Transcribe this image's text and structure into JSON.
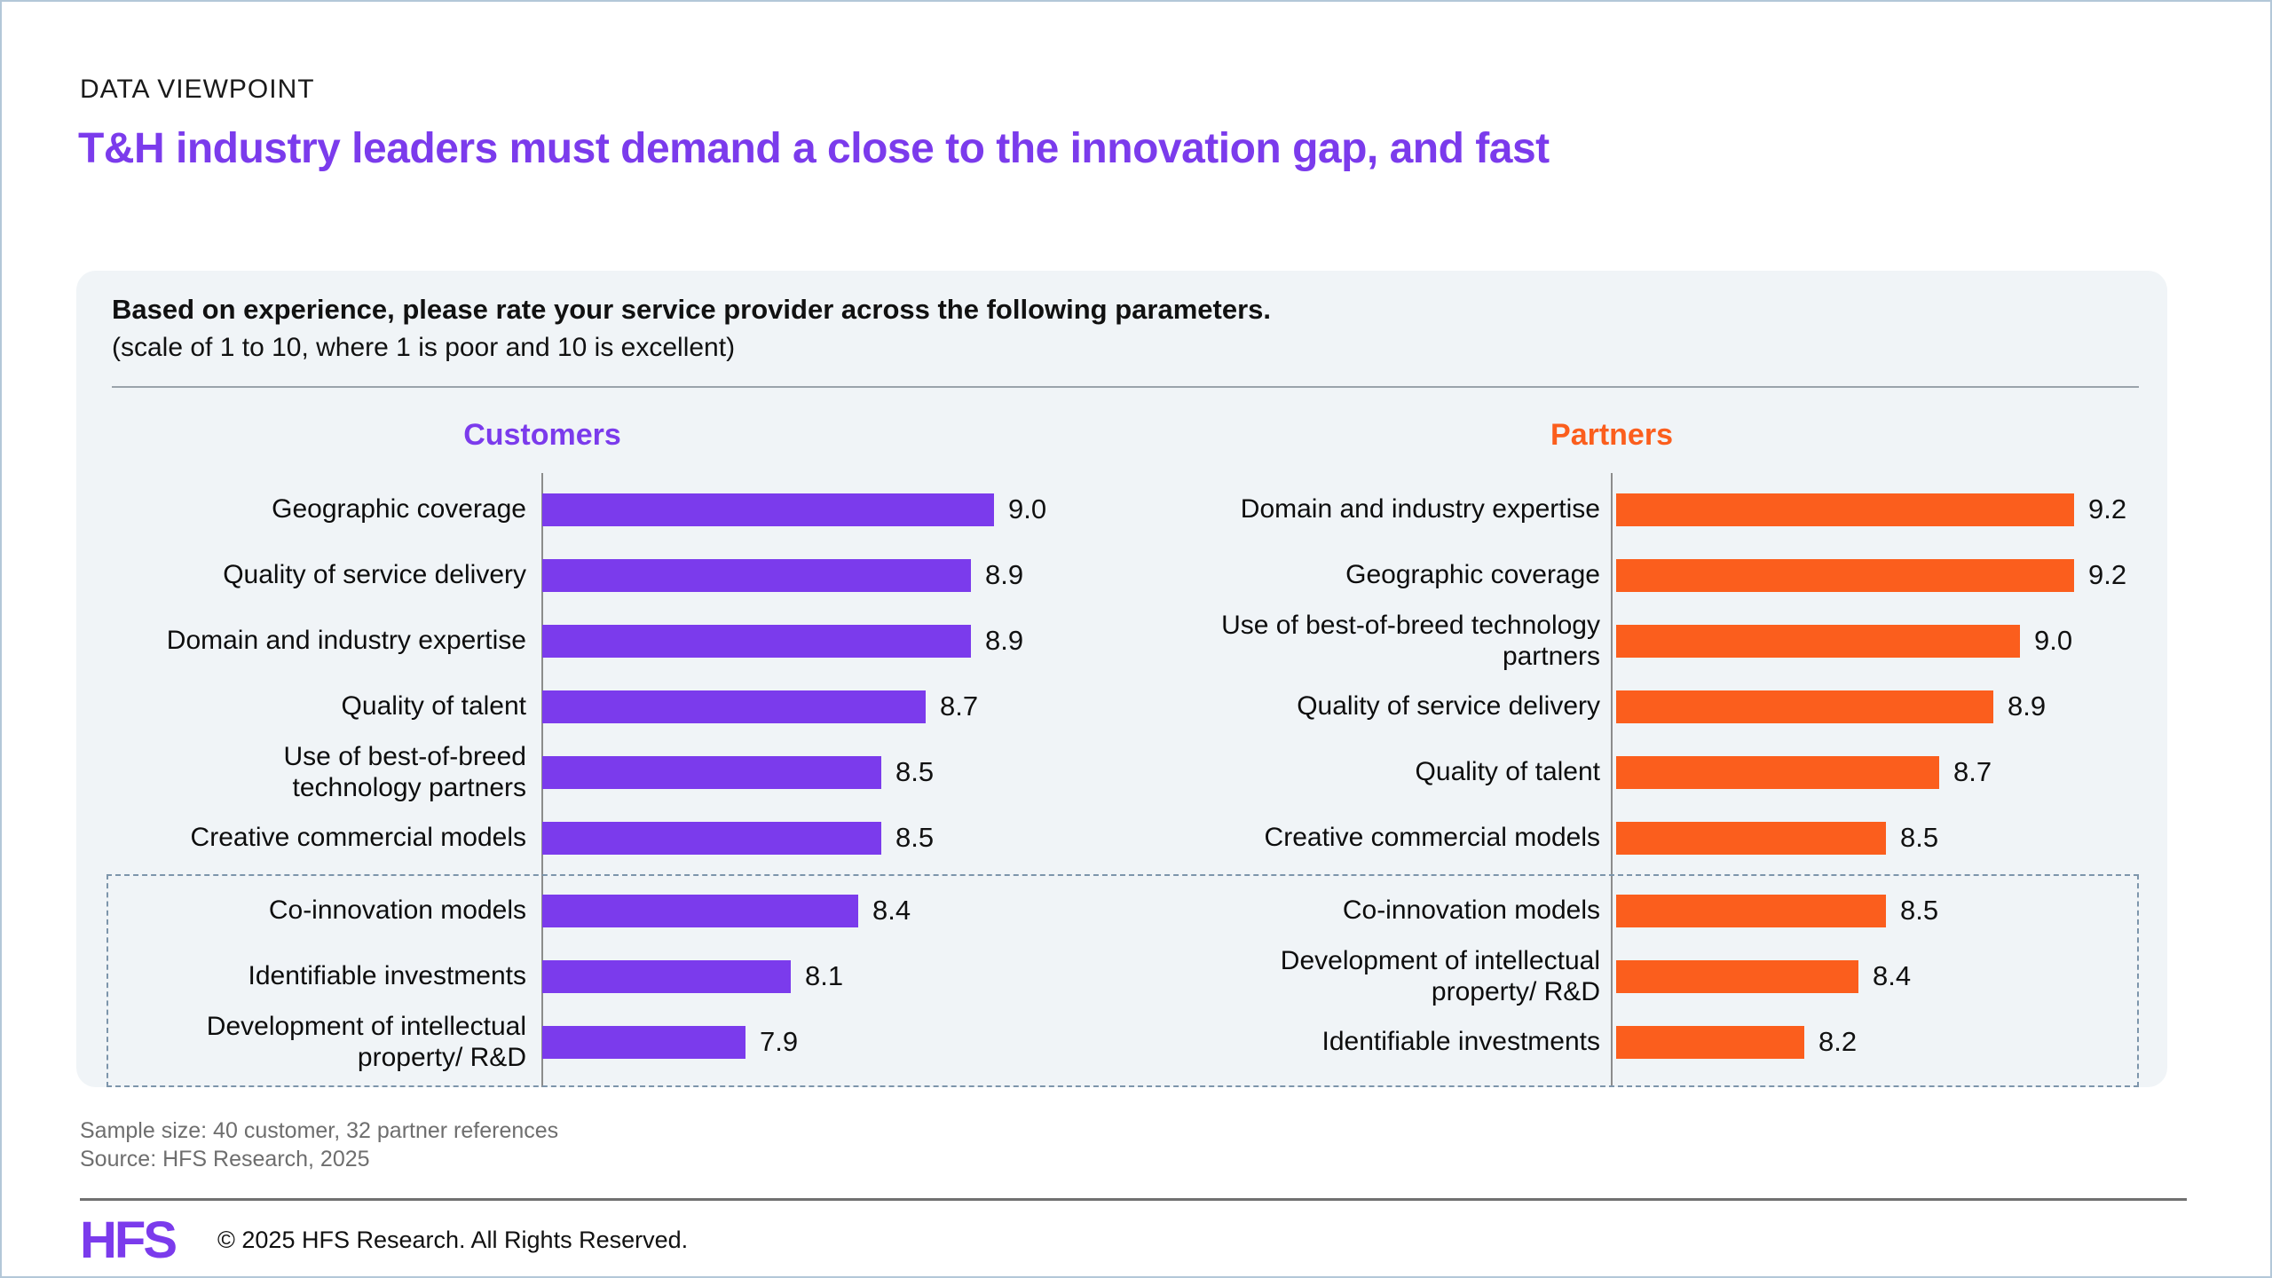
{
  "page": {
    "eyebrow": "DATA VIEWPOINT",
    "title": "T&H industry leaders must demand a close to the innovation gap, and fast",
    "accent_purple": "#7b3bec",
    "accent_orange": "#fb5e1d",
    "panel_background": "#f0f4f7"
  },
  "panel": {
    "question": "Based on experience, please rate your service provider across the following parameters.",
    "scale_note": "(scale of 1 to 10, where 1 is poor and 10 is excellent)"
  },
  "chart_data": [
    {
      "type": "bar",
      "orientation": "horizontal",
      "title": "Customers",
      "bar_color": "#7b3bec",
      "xlim": [
        7.0,
        9.5
      ],
      "grid": false,
      "value_labels": true,
      "categories": [
        "Geographic coverage",
        "Quality of service delivery",
        "Domain and industry expertise",
        "Quality of talent",
        "Use of best-of-breed\ntechnology partners",
        "Creative commercial models",
        "Co-innovation models",
        "Identifiable investments",
        "Development of intellectual\nproperty/ R&D"
      ],
      "values": [
        9.0,
        8.9,
        8.9,
        8.7,
        8.5,
        8.5,
        8.4,
        8.1,
        7.9
      ],
      "dashed_box_last_n": 3
    },
    {
      "type": "bar",
      "orientation": "horizontal",
      "title": "Partners",
      "bar_color": "#fb5e1d",
      "xlim": [
        7.5,
        9.5
      ],
      "grid": false,
      "value_labels": true,
      "categories": [
        "Domain and industry expertise",
        "Geographic coverage",
        "Use of best-of-breed technology\npartners",
        "Quality of service delivery",
        "Quality of talent",
        "Creative commercial models",
        "Co-innovation models",
        "Development of intellectual\nproperty/ R&D",
        "Identifiable investments"
      ],
      "values": [
        9.2,
        9.2,
        9.0,
        8.9,
        8.7,
        8.5,
        8.5,
        8.4,
        8.2
      ],
      "dashed_box_last_n": 3
    }
  ],
  "footnotes": {
    "sample_size": "Sample size: 40 customer, 32 partner references",
    "source": "Source: HFS Research, 2025"
  },
  "footer": {
    "logo_text": "HFS",
    "copyright": "© 2025 HFS Research. All Rights Reserved."
  }
}
